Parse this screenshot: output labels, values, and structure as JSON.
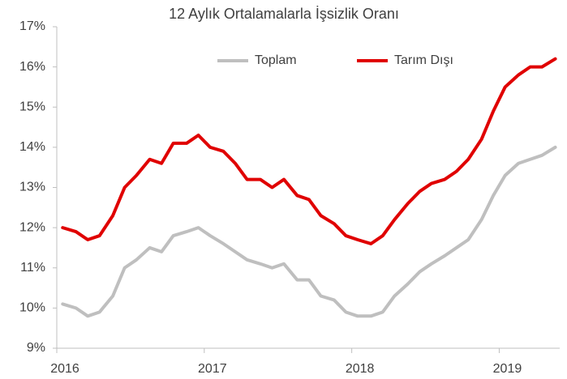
{
  "chart_data": {
    "type": "line",
    "title": "12 Aylık Ortalamalarla İşsizlik Oranı",
    "x": [
      2016.04,
      2016.13,
      2016.21,
      2016.29,
      2016.38,
      2016.46,
      2016.54,
      2016.63,
      2016.71,
      2016.79,
      2016.88,
      2016.96,
      2017.04,
      2017.13,
      2017.21,
      2017.29,
      2017.38,
      2017.46,
      2017.54,
      2017.63,
      2017.71,
      2017.79,
      2017.88,
      2017.96,
      2018.04,
      2018.13,
      2018.21,
      2018.29,
      2018.38,
      2018.46,
      2018.54,
      2018.63,
      2018.71,
      2018.79,
      2018.88,
      2018.96,
      2019.04,
      2019.13,
      2019.21,
      2019.29,
      2019.38
    ],
    "series": [
      {
        "name": "Toplam",
        "color": "#bfbfbf",
        "values": [
          10.1,
          10.0,
          9.8,
          9.9,
          10.3,
          11.0,
          11.2,
          11.5,
          11.4,
          11.8,
          11.9,
          12.0,
          11.8,
          11.6,
          11.4,
          11.2,
          11.1,
          11.0,
          11.1,
          10.7,
          10.7,
          10.3,
          10.2,
          9.9,
          9.8,
          9.8,
          9.9,
          10.3,
          10.6,
          10.9,
          11.1,
          11.3,
          11.5,
          11.7,
          12.2,
          12.8,
          13.3,
          13.6,
          13.7,
          13.8,
          14.0
        ]
      },
      {
        "name": "Tarım Dışı",
        "color": "#e00000",
        "values": [
          12.0,
          11.9,
          11.7,
          11.8,
          12.3,
          13.0,
          13.3,
          13.7,
          13.6,
          14.1,
          14.1,
          14.3,
          14.0,
          13.9,
          13.6,
          13.2,
          13.2,
          13.0,
          13.2,
          12.8,
          12.7,
          12.3,
          12.1,
          11.8,
          11.7,
          11.6,
          11.8,
          12.2,
          12.6,
          12.9,
          13.1,
          13.2,
          13.4,
          13.7,
          14.2,
          14.9,
          15.5,
          15.8,
          16.0,
          16.0,
          16.2
        ]
      }
    ],
    "xlim": [
      2016,
      2019.41
    ],
    "xticks": [
      2016,
      2017,
      2018,
      2019
    ],
    "ylim": [
      9,
      17
    ],
    "yticks": [
      {
        "value": 9,
        "label": "9%"
      },
      {
        "value": 10,
        "label": "10%"
      },
      {
        "value": 11,
        "label": "11%"
      },
      {
        "value": 12,
        "label": "12%"
      },
      {
        "value": 13,
        "label": "13%"
      },
      {
        "value": 14,
        "label": "14%"
      },
      {
        "value": 15,
        "label": "15%"
      },
      {
        "value": 16,
        "label": "16%"
      },
      {
        "value": 17,
        "label": "17%"
      }
    ],
    "grid": false,
    "legend": "top"
  }
}
